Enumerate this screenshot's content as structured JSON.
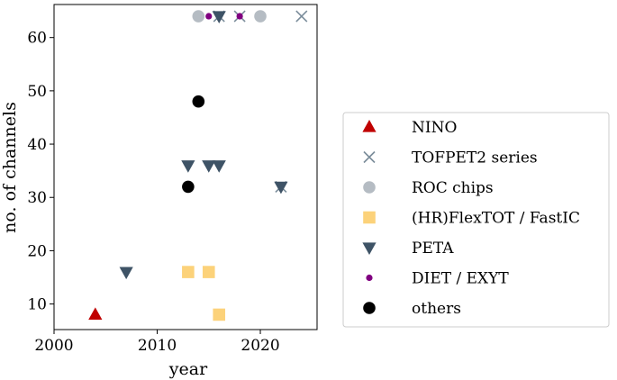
{
  "chart_data": {
    "type": "scatter",
    "xlabel": "year",
    "ylabel": "no. of channels",
    "xlim": [
      2000,
      2025.5
    ],
    "ylim": [
      5.2,
      66.2
    ],
    "xticks": [
      2000,
      2010,
      2020
    ],
    "yticks": [
      10,
      20,
      30,
      40,
      50,
      60
    ],
    "grid": false,
    "legend_position": "outside-right",
    "series": [
      {
        "name": "NINO",
        "marker": "triangle-up",
        "color": "#C00000",
        "points": [
          [
            2004,
            8
          ]
        ]
      },
      {
        "name": "TOFPET2 series",
        "marker": "x",
        "color": "#7A8C9A",
        "points": [
          [
            2016,
            64
          ],
          [
            2018,
            64
          ],
          [
            2024,
            64
          ],
          [
            2022,
            32
          ]
        ]
      },
      {
        "name": "ROC chips",
        "marker": "circle",
        "color": "#B5BCC3",
        "points": [
          [
            2014,
            64
          ],
          [
            2020,
            64
          ]
        ]
      },
      {
        "name": "(HR)FlexTOT / FastIC",
        "marker": "square",
        "color": "#FCD27A",
        "points": [
          [
            2013,
            16
          ],
          [
            2015,
            16
          ],
          [
            2016,
            8
          ]
        ]
      },
      {
        "name": "PETA",
        "marker": "triangle-down",
        "color": "#3E5366",
        "points": [
          [
            2007,
            16
          ],
          [
            2013,
            36
          ],
          [
            2015,
            36
          ],
          [
            2016,
            36
          ],
          [
            2016,
            64
          ],
          [
            2022,
            32
          ]
        ]
      },
      {
        "name": "DIET / EXYT",
        "marker": "dot",
        "color": "#800080",
        "points": [
          [
            2015,
            64
          ],
          [
            2018,
            64
          ]
        ]
      },
      {
        "name": "others",
        "marker": "circle",
        "color": "#000000",
        "points": [
          [
            2013,
            32
          ],
          [
            2014,
            48
          ]
        ]
      }
    ]
  }
}
